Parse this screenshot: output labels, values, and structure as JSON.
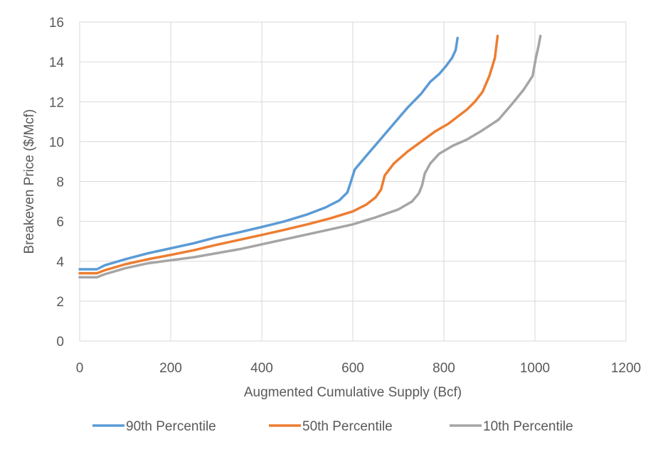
{
  "chart_data": {
    "type": "line",
    "xlabel": "Augmented Cumulative Supply (Bcf)",
    "ylabel": "Breakeven Price ($/Mcf)",
    "xlim": [
      0,
      1200
    ],
    "ylim": [
      0,
      16
    ],
    "xticks": [
      0,
      200,
      400,
      600,
      800,
      1000,
      1200
    ],
    "yticks": [
      0,
      2,
      4,
      6,
      8,
      10,
      12,
      14,
      16
    ],
    "grid": true,
    "legend_position": "bottom",
    "series": [
      {
        "name": "90th Percentile",
        "color": "#5b9bd5",
        "points": [
          [
            0,
            3.6
          ],
          [
            38,
            3.6
          ],
          [
            55,
            3.8
          ],
          [
            100,
            4.1
          ],
          [
            150,
            4.4
          ],
          [
            200,
            4.65
          ],
          [
            250,
            4.9
          ],
          [
            300,
            5.2
          ],
          [
            350,
            5.45
          ],
          [
            400,
            5.72
          ],
          [
            450,
            6.0
          ],
          [
            500,
            6.35
          ],
          [
            540,
            6.7
          ],
          [
            570,
            7.05
          ],
          [
            588,
            7.45
          ],
          [
            596,
            8.0
          ],
          [
            604,
            8.6
          ],
          [
            630,
            9.3
          ],
          [
            660,
            10.1
          ],
          [
            690,
            10.9
          ],
          [
            720,
            11.7
          ],
          [
            750,
            12.4
          ],
          [
            770,
            13.0
          ],
          [
            790,
            13.4
          ],
          [
            805,
            13.8
          ],
          [
            818,
            14.2
          ],
          [
            826,
            14.6
          ],
          [
            830,
            15.2
          ]
        ]
      },
      {
        "name": "50th Percentile",
        "color": "#ed7d31",
        "points": [
          [
            0,
            3.4
          ],
          [
            38,
            3.4
          ],
          [
            55,
            3.55
          ],
          [
            100,
            3.85
          ],
          [
            150,
            4.1
          ],
          [
            200,
            4.32
          ],
          [
            250,
            4.55
          ],
          [
            300,
            4.82
          ],
          [
            350,
            5.07
          ],
          [
            400,
            5.32
          ],
          [
            450,
            5.58
          ],
          [
            500,
            5.85
          ],
          [
            550,
            6.15
          ],
          [
            600,
            6.5
          ],
          [
            630,
            6.85
          ],
          [
            650,
            7.2
          ],
          [
            662,
            7.6
          ],
          [
            670,
            8.3
          ],
          [
            690,
            8.9
          ],
          [
            720,
            9.5
          ],
          [
            750,
            10.0
          ],
          [
            780,
            10.5
          ],
          [
            810,
            10.9
          ],
          [
            850,
            11.6
          ],
          [
            868,
            12.0
          ],
          [
            885,
            12.5
          ],
          [
            900,
            13.3
          ],
          [
            912,
            14.2
          ],
          [
            918,
            15.3
          ]
        ]
      },
      {
        "name": "10th Percentile",
        "color": "#a5a5a5",
        "points": [
          [
            0,
            3.2
          ],
          [
            38,
            3.2
          ],
          [
            55,
            3.35
          ],
          [
            100,
            3.65
          ],
          [
            150,
            3.9
          ],
          [
            200,
            4.05
          ],
          [
            250,
            4.2
          ],
          [
            300,
            4.4
          ],
          [
            350,
            4.6
          ],
          [
            400,
            4.85
          ],
          [
            450,
            5.1
          ],
          [
            500,
            5.35
          ],
          [
            550,
            5.6
          ],
          [
            600,
            5.85
          ],
          [
            650,
            6.2
          ],
          [
            700,
            6.6
          ],
          [
            730,
            7.0
          ],
          [
            745,
            7.4
          ],
          [
            752,
            7.8
          ],
          [
            758,
            8.4
          ],
          [
            770,
            8.9
          ],
          [
            790,
            9.4
          ],
          [
            820,
            9.8
          ],
          [
            850,
            10.1
          ],
          [
            880,
            10.5
          ],
          [
            920,
            11.1
          ],
          [
            950,
            11.9
          ],
          [
            975,
            12.6
          ],
          [
            995,
            13.3
          ],
          [
            1002,
            14.2
          ],
          [
            1008,
            14.8
          ],
          [
            1012,
            15.3
          ]
        ]
      }
    ]
  }
}
